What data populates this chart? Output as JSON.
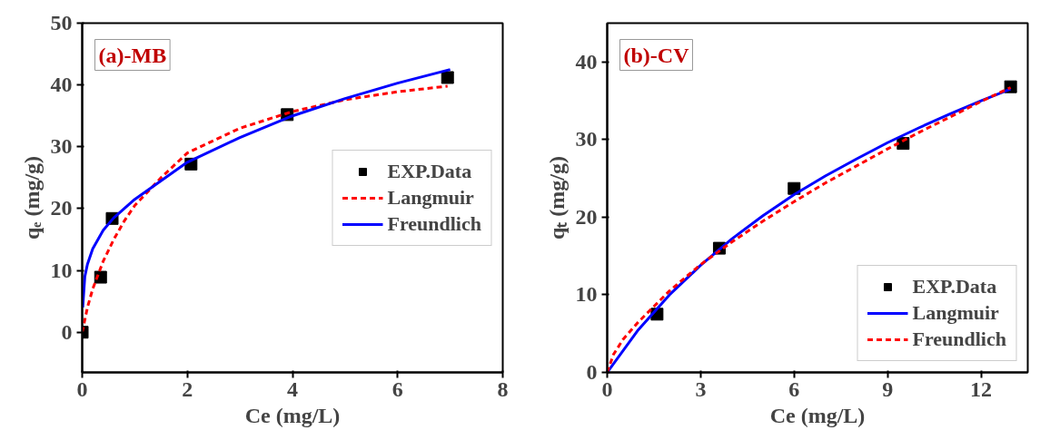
{
  "chart_data": [
    {
      "type": "scatter",
      "xlabel": "Ce (mg/L)",
      "ylabel": "qₑ (mg/g)",
      "annotations": [
        "(a)-MB"
      ],
      "xlim": [
        0,
        8
      ],
      "ylim": [
        -6.5,
        50
      ],
      "xticks": [
        0,
        2,
        4,
        6,
        8
      ],
      "yticks": [
        0,
        10,
        20,
        30,
        40,
        50
      ],
      "grid": false,
      "legend": "right",
      "series": [
        {
          "name": "EXP.Data",
          "marker": "square",
          "color": "#000000",
          "x": [
            0,
            0.35,
            0.57,
            2.07,
            3.9,
            6.95
          ],
          "values": [
            0,
            8.9,
            18.4,
            27.2,
            35.2,
            41.2
          ]
        },
        {
          "name": "Langmuir",
          "type": "line",
          "line_style": "dashed",
          "color": "#ff0000",
          "x": [
            0,
            0.1,
            0.2,
            0.4,
            0.6,
            0.8,
            1,
            1.5,
            2,
            3,
            4,
            5,
            6,
            6.95
          ],
          "values": [
            0,
            4,
            7,
            11.5,
            15,
            18,
            20.5,
            25,
            29,
            33,
            35.7,
            37.6,
            38.9,
            39.8
          ]
        },
        {
          "name": "Freundlich",
          "type": "line",
          "line_style": "solid",
          "color": "#0000ff",
          "x": [
            0.01,
            0.05,
            0.1,
            0.2,
            0.4,
            0.6,
            1,
            1.5,
            2,
            3,
            4,
            5,
            6,
            7
          ],
          "values": [
            4,
            9,
            11,
            13.5,
            16.5,
            18.5,
            21.5,
            24.5,
            27.5,
            31.5,
            35,
            37.8,
            40.3,
            42.5
          ]
        }
      ]
    },
    {
      "type": "scatter",
      "xlabel": "Ce (mg/L)",
      "ylabel": "qₜ (mg/g)",
      "annotations": [
        "(b)-CV"
      ],
      "xlim": [
        0,
        13.5
      ],
      "ylim": [
        0,
        45
      ],
      "xticks": [
        0,
        3,
        6,
        9,
        12
      ],
      "yticks": [
        0,
        10,
        20,
        30,
        40
      ],
      "grid": false,
      "legend": "bottom right",
      "series": [
        {
          "name": "EXP.Data",
          "marker": "square",
          "color": "#000000",
          "x": [
            1.6,
            3.6,
            6,
            9.5,
            12.95
          ],
          "values": [
            7.5,
            16,
            23.7,
            29.5,
            36.8
          ]
        },
        {
          "name": "Langmuir",
          "type": "line",
          "line_style": "solid",
          "color": "#0000ff",
          "x": [
            0,
            1,
            2,
            3,
            4,
            5,
            6,
            7,
            8,
            9,
            10,
            11,
            12,
            12.95
          ],
          "values": [
            0,
            5.5,
            10,
            13.8,
            17.2,
            20.2,
            22.9,
            25.3,
            27.5,
            29.6,
            31.5,
            33.3,
            35,
            36.5
          ]
        },
        {
          "name": "Freundlich",
          "type": "line",
          "line_style": "dashed",
          "color": "#ff0000",
          "x": [
            0,
            0.2,
            0.5,
            1,
            2,
            3,
            4,
            5,
            6,
            7,
            8,
            9,
            10,
            11,
            12,
            12.95
          ],
          "values": [
            0,
            2.3,
            4.2,
            6.5,
            10.5,
            13.9,
            16.8,
            19.5,
            22,
            24.4,
            26.6,
            28.8,
            30.9,
            32.9,
            34.9,
            36.7
          ]
        }
      ]
    }
  ]
}
